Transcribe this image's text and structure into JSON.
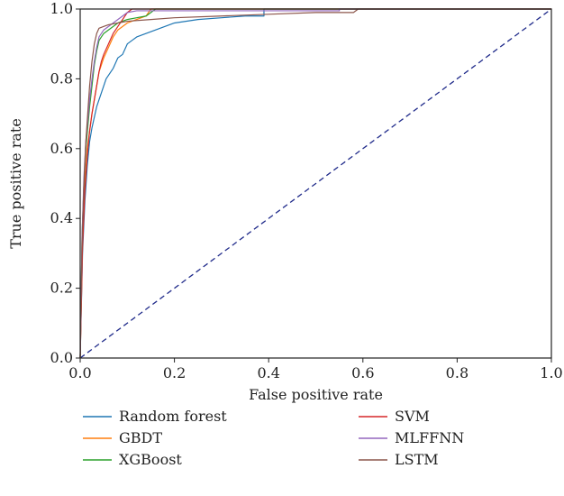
{
  "chart_data": {
    "type": "line",
    "xlabel": "False positive rate",
    "ylabel": "True positive rate",
    "xlim": [
      0.0,
      1.0
    ],
    "ylim": [
      0.0,
      1.0
    ],
    "xticks": [
      "0.0",
      "0.2",
      "0.4",
      "0.6",
      "0.8",
      "1.0"
    ],
    "yticks": [
      "0.0",
      "0.2",
      "0.4",
      "0.6",
      "0.8",
      "1.0"
    ],
    "grid": false,
    "legend_position": "bottom",
    "diagonal": {
      "x": [
        0.0,
        1.0
      ],
      "y": [
        0.0,
        1.0
      ],
      "color": "#1f2a8a",
      "style": "dashed"
    },
    "series": [
      {
        "name": "Random forest",
        "color": "#1f77b4",
        "x": [
          0.0,
          0.005,
          0.01,
          0.015,
          0.02,
          0.025,
          0.03,
          0.035,
          0.04,
          0.045,
          0.05,
          0.055,
          0.06,
          0.07,
          0.08,
          0.09,
          0.1,
          0.11,
          0.12,
          0.14,
          0.16,
          0.18,
          0.2,
          0.25,
          0.3,
          0.35,
          0.39,
          0.39,
          1.0
        ],
        "y": [
          0.0,
          0.3,
          0.45,
          0.55,
          0.62,
          0.66,
          0.69,
          0.72,
          0.74,
          0.76,
          0.78,
          0.8,
          0.81,
          0.83,
          0.86,
          0.87,
          0.9,
          0.91,
          0.92,
          0.93,
          0.94,
          0.95,
          0.96,
          0.97,
          0.975,
          0.98,
          0.98,
          1.0,
          1.0
        ]
      },
      {
        "name": "GBDT",
        "color": "#ff7f0e",
        "x": [
          0.0,
          0.005,
          0.01,
          0.015,
          0.02,
          0.025,
          0.03,
          0.035,
          0.04,
          0.05,
          0.06,
          0.07,
          0.08,
          0.09,
          0.1,
          0.12,
          0.14,
          0.15,
          1.0
        ],
        "y": [
          0.0,
          0.33,
          0.5,
          0.6,
          0.65,
          0.7,
          0.74,
          0.78,
          0.82,
          0.86,
          0.89,
          0.92,
          0.94,
          0.95,
          0.96,
          0.97,
          0.98,
          1.0,
          1.0
        ]
      },
      {
        "name": "XGBoost",
        "color": "#2ca02c",
        "x": [
          0.0,
          0.004,
          0.008,
          0.012,
          0.016,
          0.02,
          0.025,
          0.03,
          0.035,
          0.04,
          0.05,
          0.06,
          0.07,
          0.08,
          0.1,
          0.12,
          0.14,
          0.16,
          1.0
        ],
        "y": [
          0.0,
          0.35,
          0.5,
          0.6,
          0.66,
          0.72,
          0.78,
          0.84,
          0.88,
          0.91,
          0.93,
          0.94,
          0.95,
          0.96,
          0.97,
          0.975,
          0.98,
          1.0,
          1.0
        ]
      },
      {
        "name": "SVM",
        "color": "#d62728",
        "x": [
          0.0,
          0.005,
          0.01,
          0.015,
          0.02,
          0.025,
          0.03,
          0.035,
          0.04,
          0.045,
          0.05,
          0.06,
          0.07,
          0.08,
          0.09,
          0.1,
          0.11,
          1.0
        ],
        "y": [
          0.0,
          0.32,
          0.48,
          0.58,
          0.65,
          0.7,
          0.74,
          0.78,
          0.82,
          0.85,
          0.87,
          0.9,
          0.93,
          0.95,
          0.97,
          0.99,
          1.0,
          1.0
        ]
      },
      {
        "name": "MLFFNN",
        "color": "#9467bd",
        "x": [
          0.0,
          0.004,
          0.008,
          0.012,
          0.016,
          0.02,
          0.025,
          0.03,
          0.035,
          0.04,
          0.05,
          0.06,
          0.07,
          0.08,
          0.09,
          0.1,
          0.12,
          0.55,
          0.55,
          1.0
        ],
        "y": [
          0.0,
          0.35,
          0.52,
          0.62,
          0.68,
          0.74,
          0.8,
          0.85,
          0.89,
          0.92,
          0.94,
          0.95,
          0.96,
          0.97,
          0.98,
          0.99,
          0.995,
          0.995,
          1.0,
          1.0
        ]
      },
      {
        "name": "LSTM",
        "color": "#8c564b",
        "x": [
          0.0,
          0.004,
          0.008,
          0.012,
          0.016,
          0.02,
          0.025,
          0.03,
          0.035,
          0.04,
          0.05,
          0.06,
          0.08,
          0.1,
          0.15,
          0.2,
          0.3,
          0.4,
          0.5,
          0.58,
          0.59,
          1.0
        ],
        "y": [
          0.0,
          0.33,
          0.5,
          0.62,
          0.7,
          0.78,
          0.85,
          0.9,
          0.93,
          0.945,
          0.95,
          0.955,
          0.96,
          0.965,
          0.97,
          0.975,
          0.98,
          0.985,
          0.99,
          0.99,
          1.0,
          1.0
        ]
      }
    ]
  }
}
